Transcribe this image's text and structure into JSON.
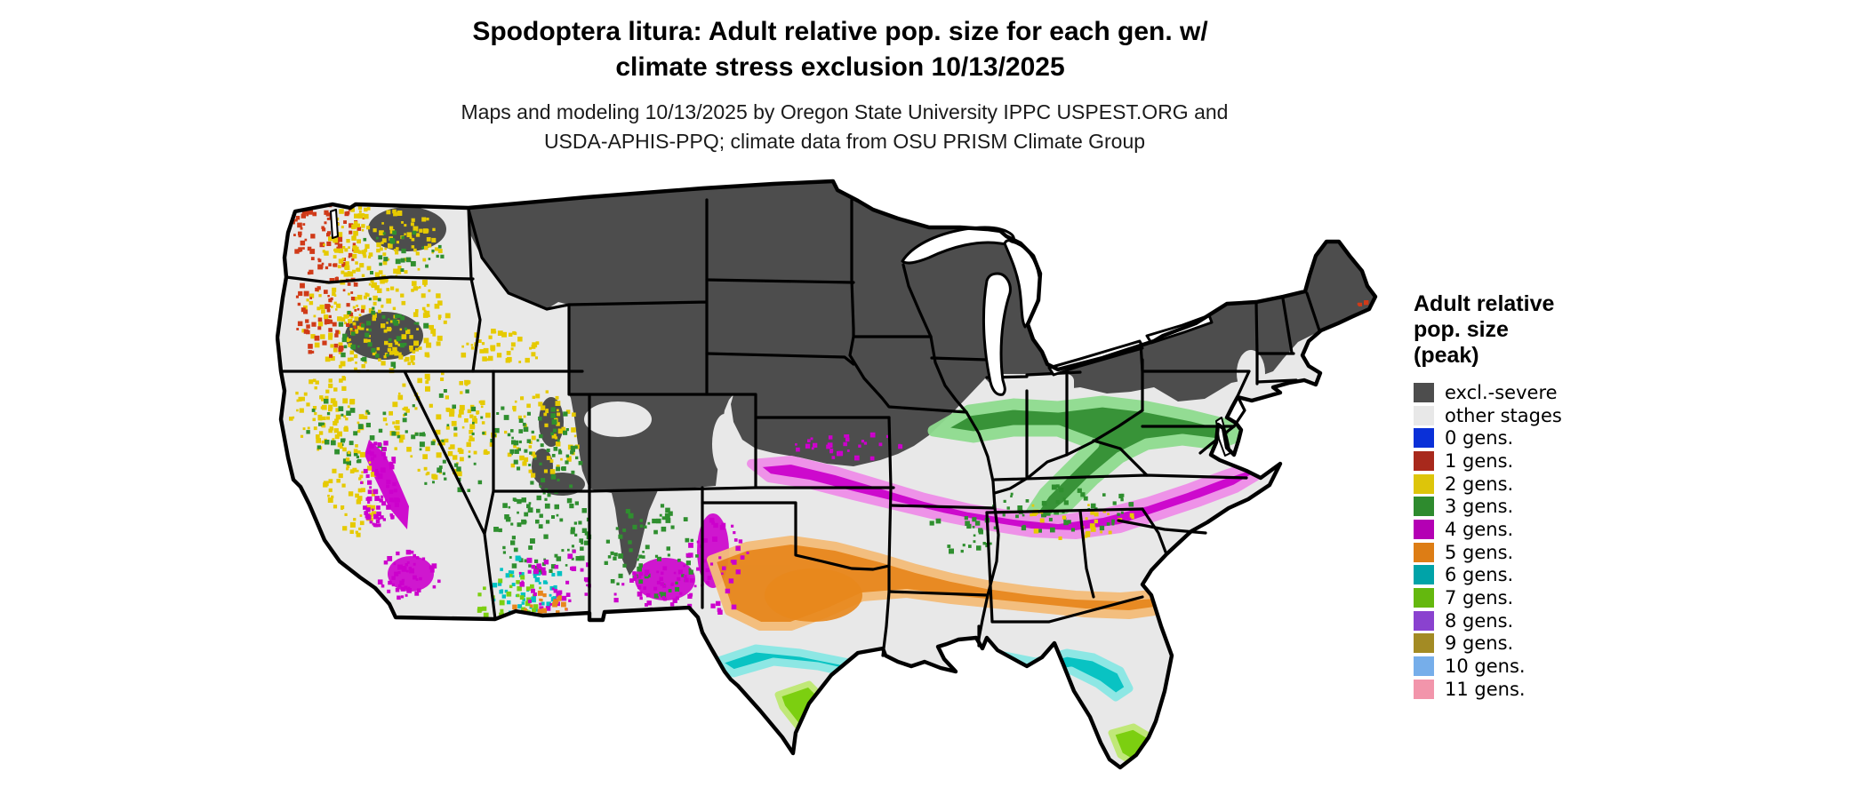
{
  "title": {
    "line1": "Spodoptera litura: Adult relative pop. size for each gen. w/",
    "line2": "climate stress exclusion 10/13/2025"
  },
  "subtitle": {
    "line1": "Maps and modeling 10/13/2025 by Oregon State University IPPC USPEST.ORG and",
    "line2": "USDA-APHIS-PPQ; climate data from OSU PRISM Climate Group"
  },
  "legend": {
    "title_lines": [
      "Adult relative",
      "pop. size",
      "(peak)"
    ],
    "items": [
      {
        "label": "excl.-severe",
        "color": "#4d4d4d"
      },
      {
        "label": "other stages",
        "color": "#e8e8e8"
      },
      {
        "label": "0 gens.",
        "color": "#0a30d8"
      },
      {
        "label": "1 gens.",
        "color": "#a8291c"
      },
      {
        "label": "2 gens.",
        "color": "#ddc50a"
      },
      {
        "label": "3 gens.",
        "color": "#2e8b2e"
      },
      {
        "label": "4 gens.",
        "color": "#b400b4"
      },
      {
        "label": "5 gens.",
        "color": "#dd7d15"
      },
      {
        "label": "6 gens.",
        "color": "#00a3a8"
      },
      {
        "label": "7 gens.",
        "color": "#64b80e"
      },
      {
        "label": "8 gens.",
        "color": "#8a42cf"
      },
      {
        "label": "9 gens.",
        "color": "#a38b24"
      },
      {
        "label": "10 gens.",
        "color": "#76aeea"
      },
      {
        "label": "11 gens.",
        "color": "#f295ab"
      }
    ]
  },
  "map": {
    "region": "Contiguous United States",
    "date_shown": "10/13/2025",
    "colors": {
      "ocean": "#ffffff",
      "land_other_stages": "#e8e8e8",
      "excluded_severe": "#4d4d4d",
      "state_border": "#000000",
      "gen1_red": "#d03a18",
      "gen2_yellow": "#e6ca00",
      "gen3_green": "#2f8f2f",
      "gen3_green_halo": "#8fdc8f",
      "gen4_magenta": "#cc00cc",
      "gen4_magenta_halo": "#ef8fe9",
      "gen5_orange": "#e8871c",
      "gen5_orange_halo": "#f4bd7a",
      "gen6_teal": "#00c2c2",
      "gen6_teal_halo": "#8ae8e4",
      "gen7_yellowgreen": "#7ccf10",
      "gen7_yellowgreen_halo": "#c0e878",
      "gen8_purple": "#8a42cf",
      "lake_fill": "#ffffff"
    }
  }
}
